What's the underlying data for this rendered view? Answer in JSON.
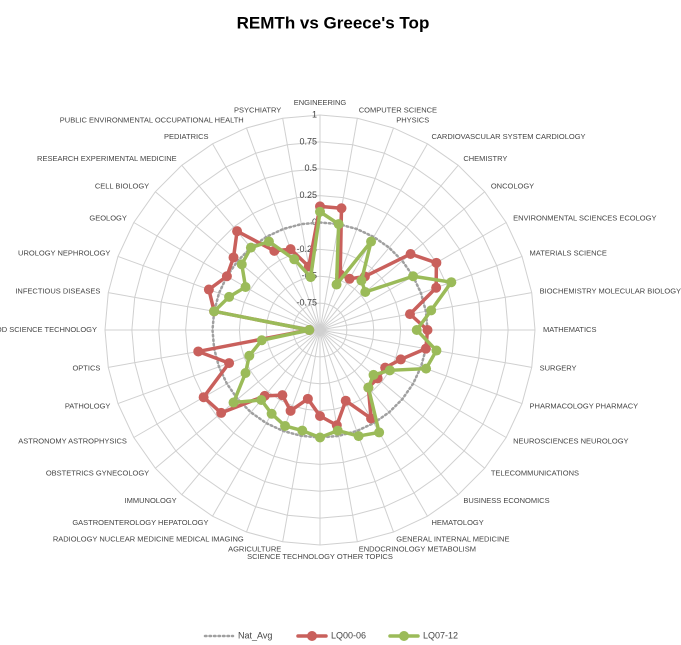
{
  "chart_data": {
    "type": "radar",
    "title": "REMTh vs Greece's Top",
    "categories": [
      "ENGINEERING",
      "COMPUTER SCIENCE",
      "PHYSICS",
      "CARDIOVASCULAR SYSTEM CARDIOLOGY",
      "CHEMISTRY",
      "ONCOLOGY",
      "ENVIRONMENTAL SCIENCES ECOLOGY",
      "MATERIALS SCIENCE",
      "BIOCHEMISTRY MOLECULAR BIOLOGY",
      "MATHEMATICS",
      "SURGERY",
      "PHARMACOLOGY PHARMACY",
      "NEUROSCIENCES NEUROLOGY",
      "TELECOMMUNICATIONS",
      "BUSINESS ECONOMICS",
      "HEMATOLOGY",
      "GENERAL INTERNAL MEDICINE",
      "ENDOCRINOLOGY METABOLISM",
      "SCIENCE TECHNOLOGY OTHER TOPICS",
      "AGRICULTURE",
      "RADIOLOGY NUCLEAR MEDICINE MEDICAL IMAGING",
      "GASTROENTEROLOGY HEPATOLOGY",
      "IMMUNOLOGY",
      "OBSTETRICS GYNECOLOGY",
      "ASTRONOMY ASTROPHYSICS",
      "PATHOLOGY",
      "OPTICS",
      "FOOD SCIENCE TECHNOLOGY",
      "INFECTIOUS DISEASES",
      "UROLOGY NEPHROLOGY",
      "GEOLOGY",
      "CELL BIOLOGY",
      "RESEARCH EXPERIMENTAL MEDICINE",
      "PEDIATRICS",
      "PUBLIC ENVIRONMENTAL OCCUPATIONAL HEALTH",
      "PSYCHIATRY"
    ],
    "series": [
      {
        "name": "Nat_Avg",
        "color": "#a0a0a0",
        "values": [
          0,
          0,
          0,
          0,
          0,
          0,
          0,
          0,
          0,
          0,
          0,
          0,
          0,
          0,
          0,
          0,
          0,
          0,
          0,
          0,
          0,
          0,
          0,
          0,
          0,
          0,
          0,
          0,
          0,
          0,
          0,
          0,
          0,
          0,
          0,
          0
        ]
      },
      {
        "name": "LQ00-06",
        "color": "#c9605c",
        "values": [
          0.15,
          0.15,
          -0.45,
          -0.45,
          -0.35,
          0.1,
          0.25,
          0.15,
          -0.15,
          0.0,
          0.0,
          -0.2,
          -0.3,
          -0.3,
          -0.3,
          -0.05,
          -0.3,
          -0.1,
          -0.2,
          -0.35,
          -0.2,
          -0.3,
          -0.2,
          0.2,
          0.25,
          -0.1,
          0.15,
          -0.9,
          0.0,
          0.1,
          0.0,
          0.05,
          0.2,
          -0.15,
          -0.2,
          -0.4
        ]
      },
      {
        "name": "LQ07-12",
        "color": "#9bbb59",
        "values": [
          0.1,
          0.0,
          -0.55,
          -0.05,
          -0.4,
          -0.45,
          0.0,
          0.3,
          0.05,
          -0.1,
          0.1,
          0.05,
          -0.25,
          -0.35,
          -0.3,
          0.1,
          0.05,
          -0.05,
          0.0,
          -0.05,
          -0.05,
          -0.1,
          -0.15,
          0.05,
          -0.2,
          -0.3,
          -0.45,
          -0.9,
          0.0,
          -0.1,
          -0.2,
          -0.05,
          0.0,
          -0.05,
          -0.3,
          -0.5
        ]
      }
    ],
    "ylim": [
      -1,
      1
    ],
    "yticks": [
      -0.75,
      -0.5,
      -0.25,
      0,
      0.25,
      0.5,
      0.75,
      1
    ],
    "grid": true
  }
}
